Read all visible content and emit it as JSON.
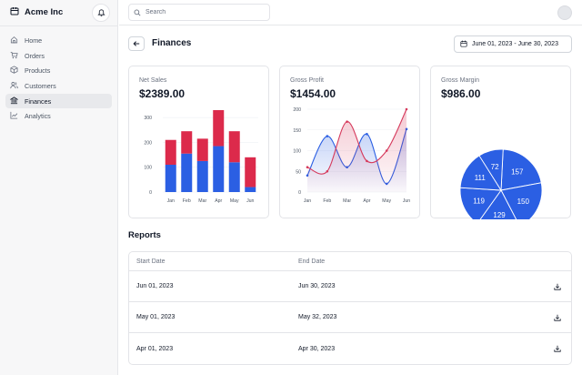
{
  "brand": {
    "name": "Acme Inc"
  },
  "sidebar": {
    "items": [
      {
        "label": "Home",
        "icon": "home-icon"
      },
      {
        "label": "Orders",
        "icon": "cart-icon"
      },
      {
        "label": "Products",
        "icon": "package-icon"
      },
      {
        "label": "Customers",
        "icon": "users-icon"
      },
      {
        "label": "Finances",
        "icon": "bank-icon",
        "active": true
      },
      {
        "label": "Analytics",
        "icon": "line-chart-icon"
      }
    ]
  },
  "search": {
    "placeholder": "Search",
    "value": ""
  },
  "page": {
    "title": "Finances",
    "date_range": "June 01, 2023 - June 30, 2023"
  },
  "cards": {
    "net_sales": {
      "label": "Net Sales",
      "value": "$2389.00"
    },
    "gross_profit": {
      "label": "Gross Profit",
      "value": "$1454.00"
    },
    "gross_margin": {
      "label": "Gross Margin",
      "value": "$986.00"
    }
  },
  "colors": {
    "blue": "#2b5fe3",
    "red": "#dc2a4b",
    "accent_line": "#d63a5c"
  },
  "chart_data": [
    {
      "type": "bar",
      "stacked": true,
      "categories": [
        "Jan",
        "Feb",
        "Mar",
        "Apr",
        "May",
        "Jun"
      ],
      "yticks": [
        0,
        100,
        200,
        300
      ],
      "ylim": [
        0,
        330
      ],
      "series": [
        {
          "values": [
            110,
            155,
            125,
            185,
            120,
            20
          ],
          "color": "#2b5fe3"
        },
        {
          "values": [
            100,
            90,
            90,
            145,
            125,
            120
          ],
          "color": "#dc2a4b"
        }
      ]
    },
    {
      "type": "line",
      "categories": [
        "Jan",
        "Feb",
        "Mar",
        "Apr",
        "May",
        "Jun"
      ],
      "yticks": [
        0,
        50,
        100,
        150,
        200
      ],
      "ylim": [
        0,
        200
      ],
      "series": [
        {
          "values": [
            40,
            135,
            60,
            140,
            20,
            152
          ],
          "color": "#2b5fe3"
        },
        {
          "values": [
            60,
            50,
            170,
            75,
            100,
            200
          ],
          "color": "#d63a5c"
        }
      ]
    },
    {
      "type": "pie",
      "values": [
        157,
        150,
        129,
        119,
        111,
        72
      ],
      "labels": [
        "157",
        "150",
        "129",
        "119",
        "111",
        "72"
      ],
      "color": "#2b5fe3"
    }
  ],
  "reports": {
    "title": "Reports",
    "columns": [
      "Start Date",
      "End Date"
    ],
    "rows": [
      {
        "start": "Jun 01, 2023",
        "end": "Jun 30, 2023"
      },
      {
        "start": "May 01, 2023",
        "end": "May 32, 2023"
      },
      {
        "start": "Apr 01, 2023",
        "end": "Apr 30, 2023"
      }
    ]
  }
}
